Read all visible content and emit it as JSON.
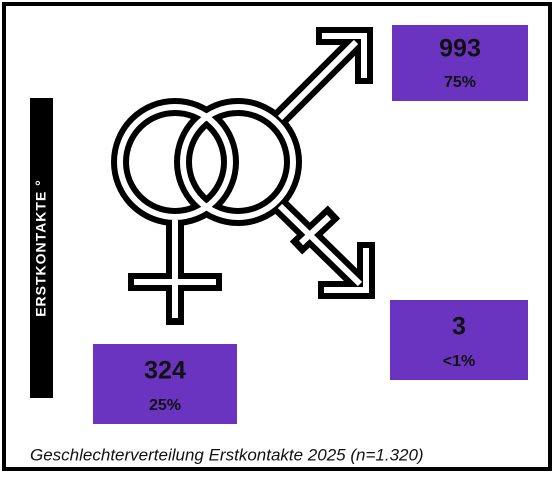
{
  "side_label": "ERSTKONTAKTE °",
  "stats": [
    {
      "count": 993,
      "share": "75%"
    },
    {
      "count": 3,
      "share": "<1%"
    },
    {
      "count": 324,
      "share": "25%"
    }
  ],
  "caption": "Geschlechterverteilung Erstkontakte 2025 (n=1.320)"
}
